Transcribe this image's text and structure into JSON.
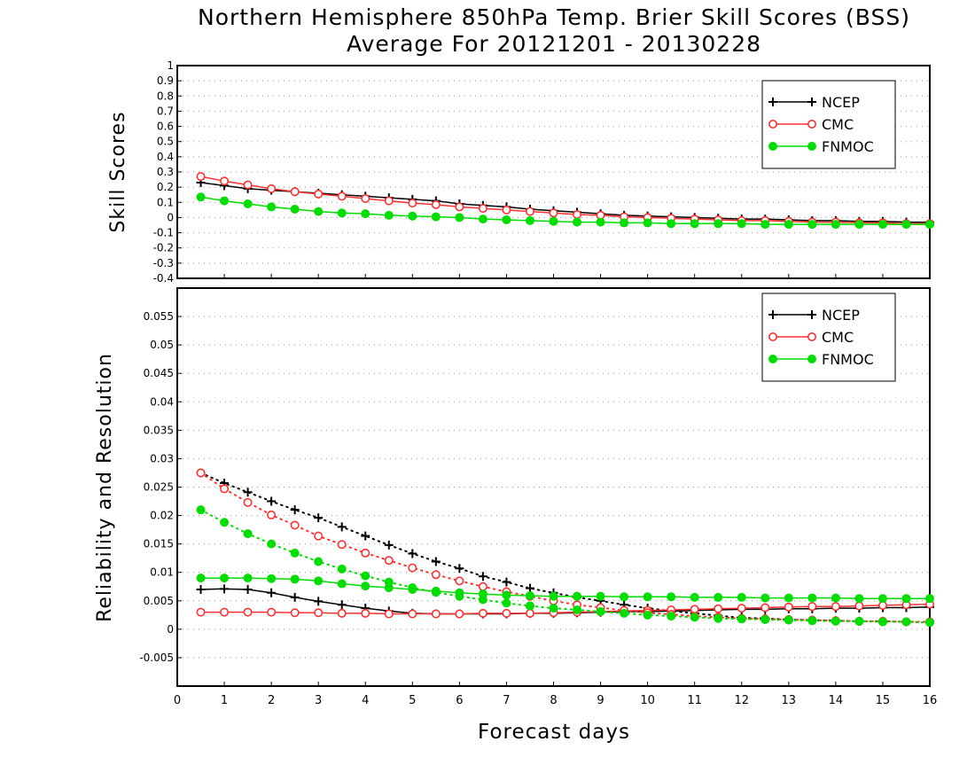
{
  "title_line1": "Northern Hemisphere 850hPa Temp. Brier Skill Scores (BSS)",
  "title_line2": "Average For 20121201 - 20130228",
  "xlabel": "Forecast days",
  "colors": {
    "NCEP": "#000000",
    "CMC": "#ff3030",
    "FNMOC": "#00dd00"
  },
  "chart_data": [
    {
      "type": "line",
      "ylabel": "Skill Scores",
      "xlim": [
        0,
        16
      ],
      "ylim": [
        -0.4,
        1
      ],
      "x_ticks": [
        0,
        1,
        2,
        3,
        4,
        5,
        6,
        7,
        8,
        9,
        10,
        11,
        12,
        13,
        14,
        15,
        16
      ],
      "y_ticks": [
        -0.4,
        -0.3,
        -0.2,
        -0.1,
        0,
        0.1,
        0.2,
        0.3,
        0.4,
        0.5,
        0.6,
        0.7,
        0.8,
        0.9,
        1
      ],
      "y_tick_labels": [
        "-0.4",
        "-0.3",
        "-0.2",
        "-0.1",
        "0",
        "0.1",
        "0.2",
        "0.3",
        "0.4",
        "0.5",
        "0.6",
        "0.7",
        "0.8",
        "0.9",
        "1"
      ],
      "grid": true,
      "legend": {
        "position": "top-right",
        "entries": [
          "NCEP",
          "CMC",
          "FNMOC"
        ]
      },
      "x": [
        0.5,
        1,
        1.5,
        2,
        2.5,
        3,
        3.5,
        4,
        4.5,
        5,
        5.5,
        6,
        6.5,
        7,
        7.5,
        8,
        8.5,
        9,
        9.5,
        10,
        10.5,
        11,
        11.5,
        12,
        12.5,
        13,
        13.5,
        14,
        14.5,
        15,
        15.5,
        16
      ],
      "series": [
        {
          "name": "NCEP",
          "marker": "plus",
          "style": "solid",
          "values": [
            0.23,
            0.21,
            0.19,
            0.18,
            0.17,
            0.16,
            0.15,
            0.14,
            0.13,
            0.12,
            0.11,
            0.09,
            0.08,
            0.07,
            0.055,
            0.045,
            0.035,
            0.025,
            0.015,
            0.01,
            0.005,
            0.0,
            -0.005,
            -0.01,
            -0.01,
            -0.015,
            -0.02,
            -0.02,
            -0.025,
            -0.025,
            -0.03,
            -0.03
          ]
        },
        {
          "name": "CMC",
          "marker": "circle-open",
          "style": "solid",
          "values": [
            0.27,
            0.24,
            0.215,
            0.19,
            0.17,
            0.155,
            0.14,
            0.125,
            0.11,
            0.095,
            0.085,
            0.07,
            0.06,
            0.05,
            0.04,
            0.03,
            0.02,
            0.015,
            0.005,
            0.0,
            -0.005,
            -0.01,
            -0.015,
            -0.02,
            -0.02,
            -0.025,
            -0.03,
            -0.03,
            -0.035,
            -0.035,
            -0.04,
            -0.04
          ]
        },
        {
          "name": "FNMOC",
          "marker": "circle-filled",
          "style": "solid",
          "values": [
            0.135,
            0.11,
            0.09,
            0.07,
            0.055,
            0.04,
            0.03,
            0.025,
            0.015,
            0.01,
            0.005,
            0.0,
            -0.01,
            -0.015,
            -0.02,
            -0.025,
            -0.03,
            -0.03,
            -0.035,
            -0.035,
            -0.04,
            -0.04,
            -0.04,
            -0.04,
            -0.045,
            -0.045,
            -0.045,
            -0.045,
            -0.045,
            -0.045,
            -0.045,
            -0.045
          ]
        }
      ]
    },
    {
      "type": "line",
      "ylabel": "Reliability and Resolution",
      "xlim": [
        0,
        16
      ],
      "ylim": [
        -0.01,
        0.06
      ],
      "x_ticks": [
        0,
        1,
        2,
        3,
        4,
        5,
        6,
        7,
        8,
        9,
        10,
        11,
        12,
        13,
        14,
        15,
        16
      ],
      "y_ticks": [
        -0.005,
        0,
        0.005,
        0.01,
        0.015,
        0.02,
        0.025,
        0.03,
        0.035,
        0.04,
        0.045,
        0.05,
        0.055
      ],
      "y_tick_labels": [
        "-0.005",
        "0",
        "0.005",
        "0.01",
        "0.015",
        "0.02",
        "0.025",
        "0.03",
        "0.035",
        "0.04",
        "0.045",
        "0.05",
        "0.055"
      ],
      "grid": true,
      "legend": {
        "position": "top-right",
        "entries": [
          "NCEP",
          "CMC",
          "FNMOC"
        ]
      },
      "x": [
        0.5,
        1,
        1.5,
        2,
        2.5,
        3,
        3.5,
        4,
        4.5,
        5,
        5.5,
        6,
        6.5,
        7,
        7.5,
        8,
        8.5,
        9,
        9.5,
        10,
        10.5,
        11,
        11.5,
        12,
        12.5,
        13,
        13.5,
        14,
        14.5,
        15,
        15.5,
        16
      ],
      "series": [
        {
          "name": "NCEP",
          "measure": "reliability",
          "marker": "plus",
          "style": "solid",
          "values": [
            0.007,
            0.0071,
            0.007,
            0.0064,
            0.0056,
            0.0049,
            0.0043,
            0.0037,
            0.0032,
            0.0028,
            0.0027,
            0.0027,
            0.0027,
            0.0027,
            0.0028,
            0.0028,
            0.0029,
            0.003,
            0.0031,
            0.0031,
            0.0032,
            0.0033,
            0.0034,
            0.0035,
            0.0035,
            0.0036,
            0.0036,
            0.0037,
            0.0037,
            0.0038,
            0.0038,
            0.0039
          ]
        },
        {
          "name": "NCEP",
          "measure": "resolution",
          "marker": "plus",
          "style": "dotted",
          "values": [
            0.0275,
            0.0257,
            0.0241,
            0.0225,
            0.021,
            0.0196,
            0.018,
            0.0164,
            0.0148,
            0.0133,
            0.0119,
            0.0107,
            0.0093,
            0.0083,
            0.0072,
            0.0064,
            0.0056,
            0.005,
            0.0043,
            0.0037,
            0.0032,
            0.0028,
            0.0024,
            0.002,
            0.0019,
            0.0017,
            0.0016,
            0.0015,
            0.0014,
            0.0014,
            0.0013,
            0.0012
          ]
        },
        {
          "name": "CMC",
          "measure": "reliability",
          "marker": "circle-open",
          "style": "solid",
          "values": [
            0.003,
            0.003,
            0.003,
            0.003,
            0.0029,
            0.0029,
            0.0028,
            0.0028,
            0.0027,
            0.0027,
            0.0027,
            0.0027,
            0.0028,
            0.0028,
            0.0028,
            0.0029,
            0.003,
            0.0031,
            0.0032,
            0.0033,
            0.0034,
            0.0035,
            0.0036,
            0.0037,
            0.0038,
            0.0039,
            0.004,
            0.004,
            0.0041,
            0.0042,
            0.0043,
            0.0044
          ]
        },
        {
          "name": "CMC",
          "measure": "resolution",
          "marker": "circle-open",
          "style": "dotted",
          "values": [
            0.0275,
            0.0247,
            0.0223,
            0.0201,
            0.0183,
            0.0164,
            0.0149,
            0.0134,
            0.0121,
            0.0108,
            0.0096,
            0.0085,
            0.0075,
            0.0066,
            0.0058,
            0.005,
            0.0043,
            0.0038,
            0.0033,
            0.0029,
            0.0026,
            0.0023,
            0.0021,
            0.0019,
            0.0018,
            0.0017,
            0.0016,
            0.0015,
            0.0014,
            0.0014,
            0.0013,
            0.0013
          ]
        },
        {
          "name": "FNMOC",
          "measure": "reliability",
          "marker": "circle-filled",
          "style": "solid",
          "values": [
            0.009,
            0.009,
            0.009,
            0.0089,
            0.0088,
            0.0085,
            0.008,
            0.0076,
            0.0073,
            0.007,
            0.0067,
            0.0064,
            0.0062,
            0.006,
            0.0059,
            0.0058,
            0.0058,
            0.0058,
            0.0057,
            0.0057,
            0.0057,
            0.0056,
            0.0056,
            0.0056,
            0.0055,
            0.0055,
            0.0055,
            0.0055,
            0.0054,
            0.0054,
            0.0054,
            0.0054
          ]
        },
        {
          "name": "FNMOC",
          "measure": "resolution",
          "marker": "circle-filled",
          "style": "dotted",
          "values": [
            0.021,
            0.0188,
            0.0168,
            0.015,
            0.0134,
            0.0119,
            0.0106,
            0.0094,
            0.0083,
            0.0073,
            0.0065,
            0.0058,
            0.0052,
            0.0046,
            0.0041,
            0.0037,
            0.0034,
            0.0031,
            0.0028,
            0.0025,
            0.0023,
            0.0021,
            0.0019,
            0.0018,
            0.0017,
            0.0016,
            0.0015,
            0.0014,
            0.0014,
            0.0013,
            0.0013,
            0.0012
          ]
        }
      ]
    }
  ]
}
